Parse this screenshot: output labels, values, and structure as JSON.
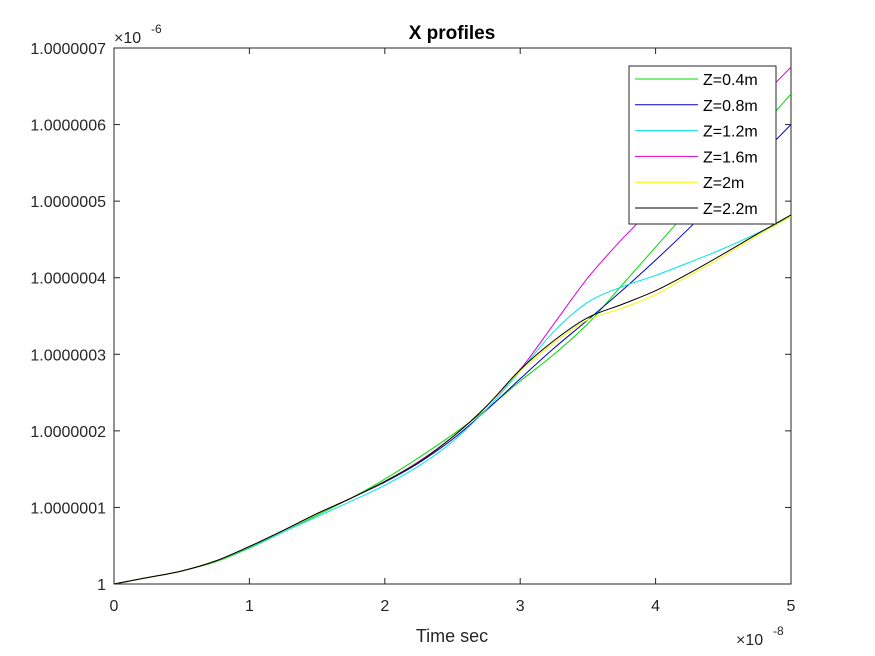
{
  "chart_data": {
    "type": "line",
    "title": "X profiles",
    "xlabel": "Time sec",
    "ylabel": "",
    "x_exponent_label": "×10",
    "x_exponent_power": "-8",
    "y_exponent_label": "×10",
    "y_exponent_power": "-6",
    "xlim": [
      0,
      5e-08
    ],
    "ylim": [
      1e-06,
      1.0000007e-06
    ],
    "xticks": [
      0,
      1e-08,
      2e-08,
      3e-08,
      4e-08,
      5e-08
    ],
    "xtick_labels": [
      "0",
      "1",
      "2",
      "3",
      "4",
      "5"
    ],
    "yticks": [
      1e-06,
      1.0000001e-06,
      1.0000002e-06,
      1.0000003e-06,
      1.0000004e-06,
      1.0000005e-06,
      1.0000006e-06,
      1.0000007e-06
    ],
    "ytick_labels": [
      "1",
      "1.0000001",
      "1.0000002",
      "1.0000003",
      "1.0000004",
      "1.0000005",
      "1.0000006",
      "1.0000007"
    ],
    "grid": false,
    "legend_position": "top-right",
    "x": [
      0,
      2.5e-09,
      5e-09,
      7.5e-09,
      1e-08,
      1.25e-08,
      1.5e-08,
      1.75e-08,
      2e-08,
      2.25e-08,
      2.5e-08,
      2.75e-08,
      3e-08,
      3.25e-08,
      3.5e-08,
      3.75e-08,
      4e-08,
      4.25e-08,
      4.5e-08,
      4.75e-08,
      5e-08
    ],
    "series": [
      {
        "name": "Z=0.4m",
        "color": "#00dd00",
        "values": [
          1e-06,
          1.0000000085e-06,
          1.000000017e-06,
          1.000000029e-06,
          1.000000047e-06,
          1.000000068e-06,
          1.00000009e-06,
          1.000000112e-06,
          1.000000137e-06,
          1.000000165e-06,
          1.000000195e-06,
          1.000000228e-06,
          1.000000265e-06,
          1.0000003e-06,
          1.00000034e-06,
          1.00000039e-06,
          1.00000044e-06,
          1.00000049e-06,
          1.00000054e-06,
          1.00000059e-06,
          1.00000064e-06
        ]
      },
      {
        "name": "Z=0.8m",
        "color": "#0000cc",
        "values": [
          1e-06,
          1.0000000085e-06,
          1.000000017e-06,
          1.00000003e-06,
          1.000000049e-06,
          1.00000007e-06,
          1.000000092e-06,
          1.000000112e-06,
          1.000000133e-06,
          1.000000158e-06,
          1.000000189e-06,
          1.000000227e-06,
          1.000000268e-06,
          1.000000308e-06,
          1.000000345e-06,
          1.000000383e-06,
          1.000000423e-06,
          1.000000465e-06,
          1.00000051e-06,
          1.000000555e-06,
          1.0000006e-06
        ]
      },
      {
        "name": "Z=1.2m",
        "color": "#00e5e5",
        "values": [
          1e-06,
          1.0000000085e-06,
          1.000000017e-06,
          1.00000003e-06,
          1.000000048e-06,
          1.000000068e-06,
          1.000000088e-06,
          1.000000108e-06,
          1.000000129e-06,
          1.000000154e-06,
          1.000000186e-06,
          1.000000228e-06,
          1.000000278e-06,
          1.00000033e-06,
          1.000000368e-06,
          1.000000388e-06,
          1.000000403e-06,
          1.00000042e-06,
          1.000000438e-06,
          1.000000458e-06,
          1.00000048e-06
        ]
      },
      {
        "name": "Z=1.6m",
        "color": "#dd00dd",
        "values": [
          1e-06,
          1.0000000085e-06,
          1.000000017e-06,
          1.00000003e-06,
          1.000000049e-06,
          1.00000007e-06,
          1.000000092e-06,
          1.000000112e-06,
          1.000000134e-06,
          1.00000016e-06,
          1.000000192e-06,
          1.000000232e-06,
          1.00000028e-06,
          1.00000034e-06,
          1.0000004e-06,
          1.00000045e-06,
          1.000000495e-06,
          1.00000054e-06,
          1.000000585e-06,
          1.00000063e-06,
          1.000000675e-06
        ]
      },
      {
        "name": "Z=2m",
        "color": "#f5f500",
        "values": [
          1e-06,
          1.0000000085e-06,
          1.000000017e-06,
          1.00000003e-06,
          1.000000049e-06,
          1.00000007e-06,
          1.000000092e-06,
          1.000000112e-06,
          1.000000134e-06,
          1.000000159e-06,
          1.000000192e-06,
          1.000000232e-06,
          1.000000278e-06,
          1.000000315e-06,
          1.000000345e-06,
          1.00000036e-06,
          1.000000378e-06,
          1.000000403e-06,
          1.000000428e-06,
          1.000000455e-06,
          1.00000048e-06
        ]
      },
      {
        "name": "Z=2.2m",
        "color": "#000000",
        "values": [
          1e-06,
          1.0000000085e-06,
          1.000000017e-06,
          1.00000003e-06,
          1.000000049e-06,
          1.00000007e-06,
          1.000000092e-06,
          1.000000112e-06,
          1.000000134e-06,
          1.000000159e-06,
          1.000000192e-06,
          1.000000232e-06,
          1.00000028e-06,
          1.000000318e-06,
          1.000000348e-06,
          1.000000365e-06,
          1.000000383e-06,
          1.000000406e-06,
          1.000000431e-06,
          1.000000457e-06,
          1.000000482e-06
        ]
      }
    ]
  }
}
